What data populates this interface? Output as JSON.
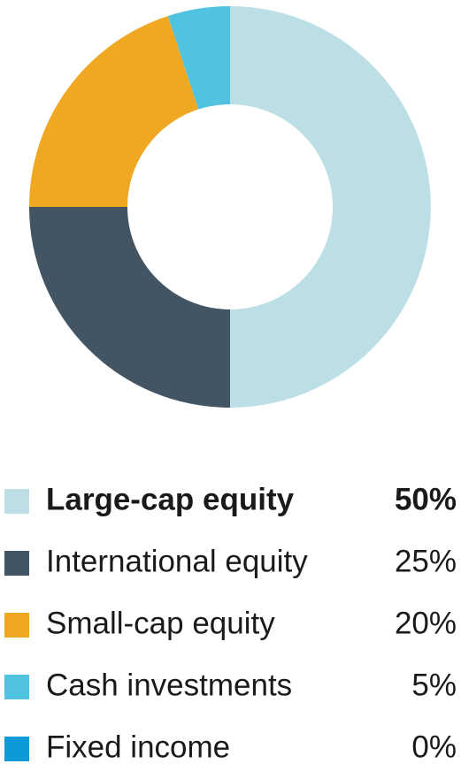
{
  "chart_data": {
    "type": "donut",
    "categories": [
      "Large-cap equity",
      "International equity",
      "Small-cap equity",
      "Cash investments",
      "Fixed income"
    ],
    "values": [
      50,
      25,
      20,
      5,
      0
    ],
    "value_labels": [
      "50%",
      "25%",
      "20%",
      "5%",
      "0%"
    ],
    "colors": [
      "#bcdfe6",
      "#435563",
      "#f0a823",
      "#4fc3e0",
      "#0d9ad8"
    ]
  }
}
